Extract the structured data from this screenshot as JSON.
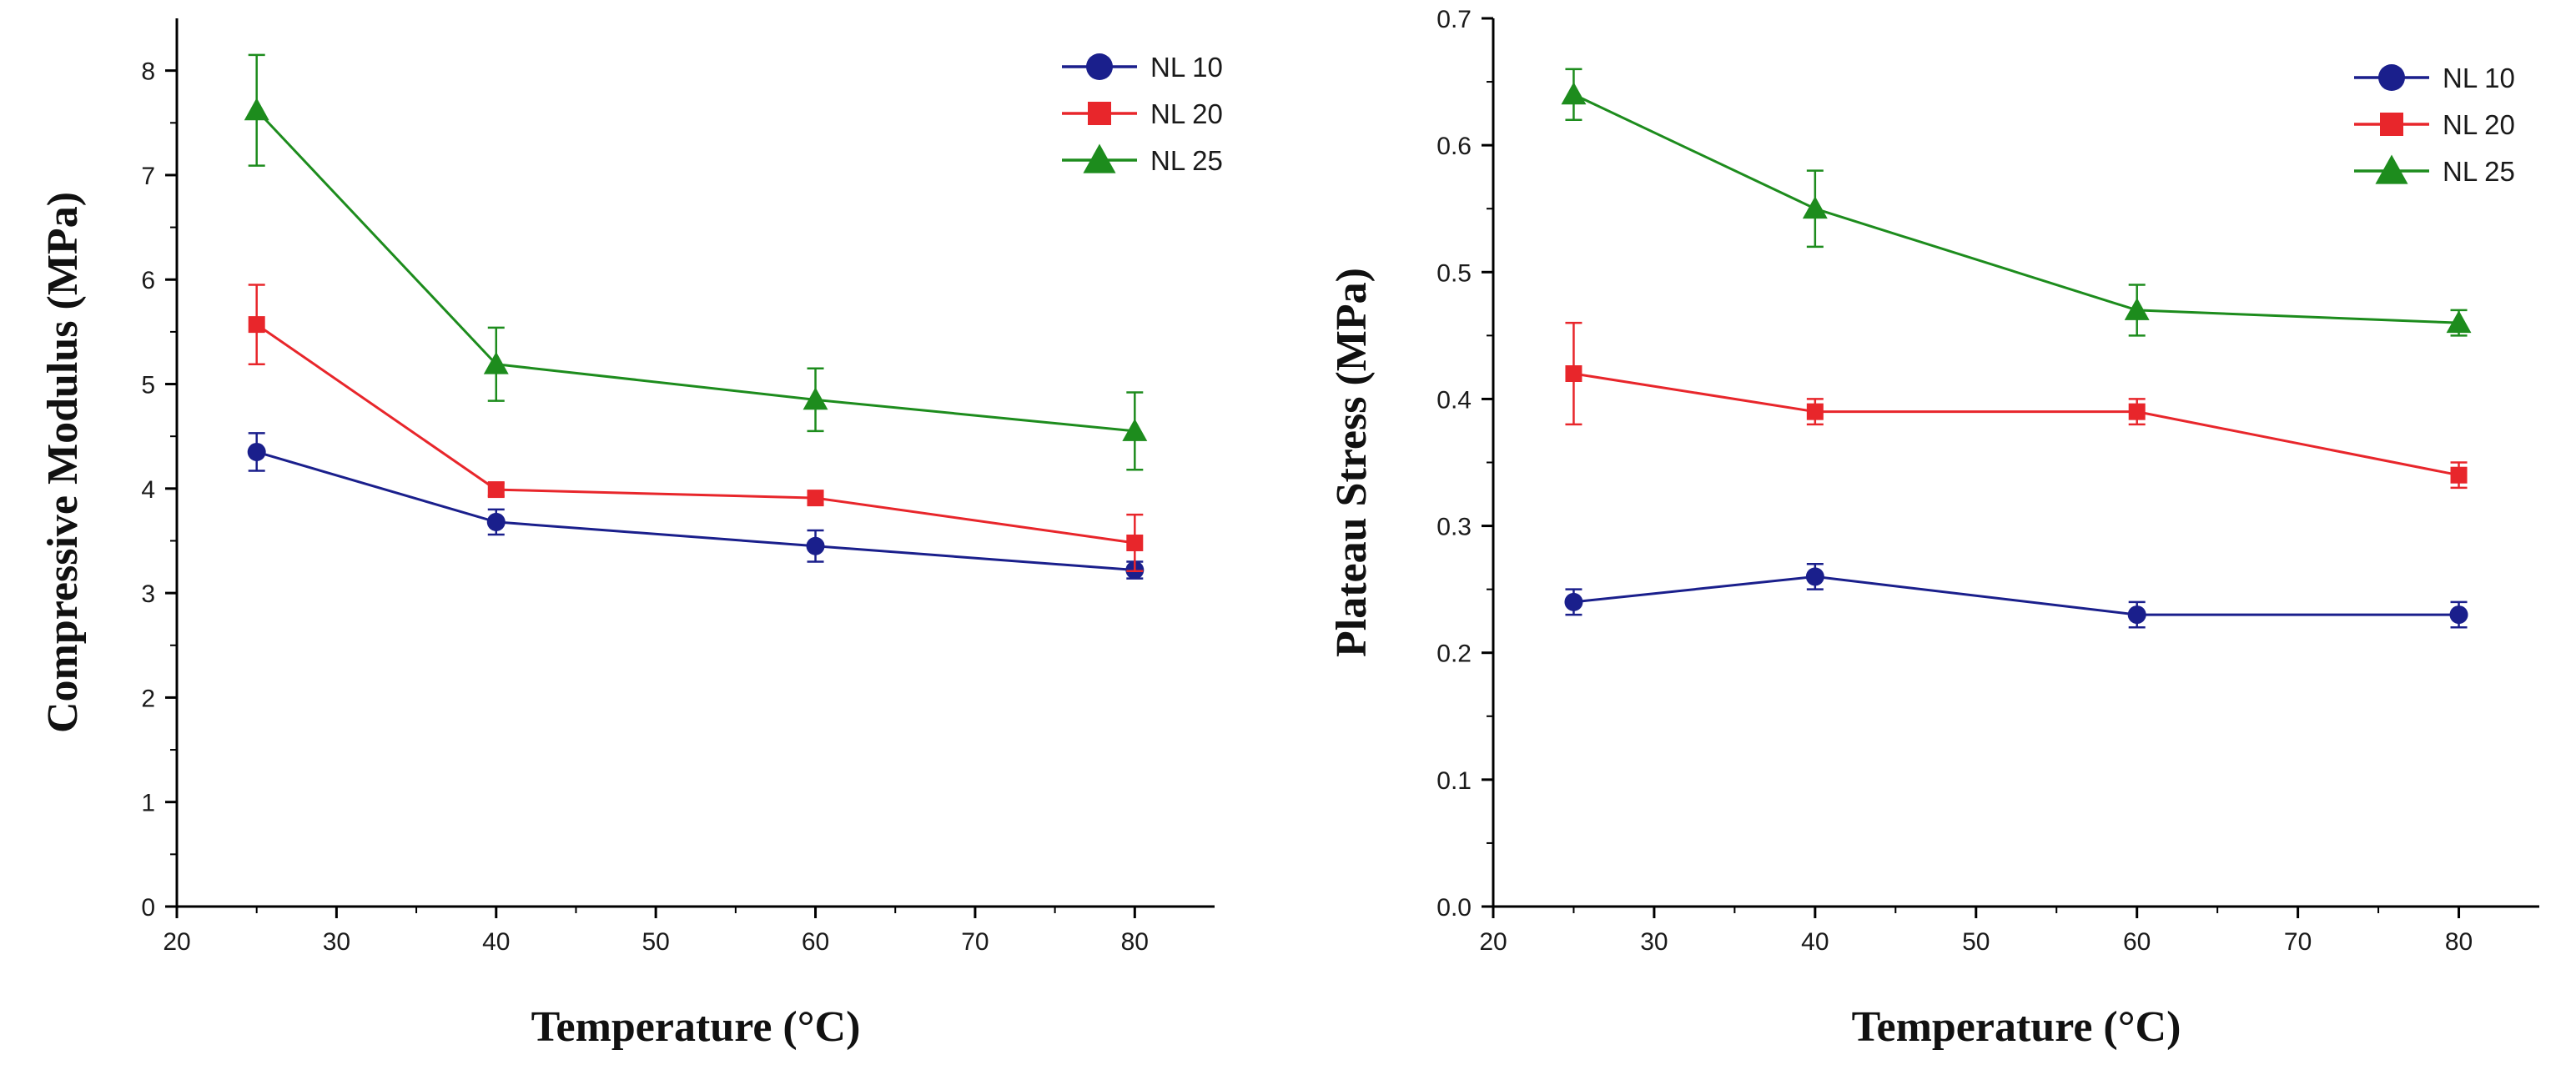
{
  "chart_data": [
    {
      "type": "line",
      "title": "",
      "xlabel": "Temperature (°C)",
      "ylabel": "Compressive Modulus (MPa)",
      "xlim": [
        20,
        85
      ],
      "ylim": [
        0,
        8.5
      ],
      "xticks": [
        "20",
        "30",
        "40",
        "50",
        "60",
        "70",
        "80"
      ],
      "yticks": [
        "0",
        "1",
        "2",
        "3",
        "4",
        "5",
        "6",
        "7",
        "8"
      ],
      "legend_position": "top-right",
      "x": [
        25,
        40,
        60,
        80
      ],
      "series": [
        {
          "name": "NL10",
          "label": "NL 10",
          "marker": "circle",
          "color": "#1a1f8c",
          "values": [
            4.35,
            3.68,
            3.45,
            3.22
          ],
          "errors": [
            0.18,
            0.12,
            0.15,
            0.08
          ]
        },
        {
          "name": "NL20",
          "label": "NL 20",
          "marker": "square",
          "color": "#e8262b",
          "values": [
            5.57,
            3.99,
            3.91,
            3.48
          ],
          "errors": [
            0.38,
            0.06,
            0.06,
            0.27
          ]
        },
        {
          "name": "NL25",
          "label": "NL 25",
          "marker": "triangle",
          "color": "#1d8c1d",
          "values": [
            7.62,
            5.19,
            4.85,
            4.55
          ],
          "errors": [
            0.53,
            0.35,
            0.3,
            0.37
          ]
        }
      ]
    },
    {
      "type": "line",
      "title": "",
      "xlabel": "Temperature (°C)",
      "ylabel": "Plateau Stress (MPa)",
      "xlim": [
        20,
        85
      ],
      "ylim": [
        0,
        0.7
      ],
      "xticks": [
        "20",
        "30",
        "40",
        "50",
        "60",
        "70",
        "80"
      ],
      "yticks": [
        "0.0",
        "0.1",
        "0.2",
        "0.3",
        "0.4",
        "0.5",
        "0.6",
        "0.7"
      ],
      "legend_position": "top-right",
      "x": [
        25,
        40,
        60,
        80
      ],
      "series": [
        {
          "name": "NL10",
          "label": "NL 10",
          "marker": "circle",
          "color": "#1a1f8c",
          "values": [
            0.24,
            0.26,
            0.23,
            0.23
          ],
          "errors": [
            0.01,
            0.01,
            0.01,
            0.01
          ]
        },
        {
          "name": "NL20",
          "label": "NL 20",
          "marker": "square",
          "color": "#e8262b",
          "values": [
            0.42,
            0.39,
            0.39,
            0.34
          ],
          "errors": [
            0.04,
            0.01,
            0.01,
            0.01
          ]
        },
        {
          "name": "NL25",
          "label": "NL 25",
          "marker": "triangle",
          "color": "#1d8c1d",
          "values": [
            0.64,
            0.55,
            0.47,
            0.46
          ],
          "errors": [
            0.02,
            0.03,
            0.02,
            0.01
          ]
        }
      ]
    }
  ]
}
